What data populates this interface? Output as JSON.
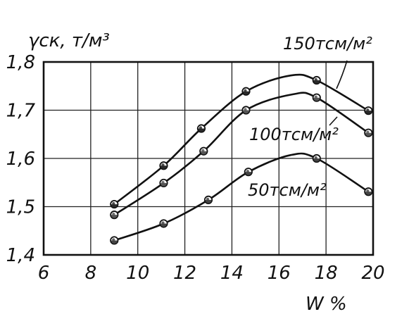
{
  "chart_data": {
    "type": "line",
    "title": "",
    "ylabel": "γск, т/м³",
    "xlabel": "W %",
    "xlim": [
      6,
      20
    ],
    "ylim": [
      1.4,
      1.8
    ],
    "x_ticks": [
      "6",
      "8",
      "10",
      "12",
      "14",
      "16",
      "18",
      "20"
    ],
    "y_ticks": [
      "1,4",
      "1,5",
      "1,6",
      "1,7",
      "1,8"
    ],
    "grid": true,
    "series": [
      {
        "name": "150тсм/м²",
        "points": [
          [
            9.0,
            1.505
          ],
          [
            11.1,
            1.585
          ],
          [
            12.7,
            1.662
          ],
          [
            14.6,
            1.739
          ],
          [
            17.6,
            1.762
          ],
          [
            19.8,
            1.699
          ]
        ],
        "curve_peak": [
          16.5,
          1.772
        ],
        "marker_color": "#2a2a2a"
      },
      {
        "name": "100тсм/м²",
        "points": [
          [
            9.0,
            1.483
          ],
          [
            11.1,
            1.549
          ],
          [
            12.8,
            1.615
          ],
          [
            14.6,
            1.7
          ],
          [
            17.6,
            1.726
          ],
          [
            19.8,
            1.653
          ]
        ],
        "curve_peak": [
          16.6,
          1.733
        ],
        "marker_color": "#555555"
      },
      {
        "name": "50тсм/м²",
        "points": [
          [
            9.0,
            1.43
          ],
          [
            11.1,
            1.465
          ],
          [
            13.0,
            1.514
          ],
          [
            14.7,
            1.572
          ],
          [
            17.6,
            1.6
          ],
          [
            19.8,
            1.531
          ]
        ],
        "curve_peak": [
          16.5,
          1.607
        ],
        "marker_color": "#444444"
      }
    ]
  }
}
